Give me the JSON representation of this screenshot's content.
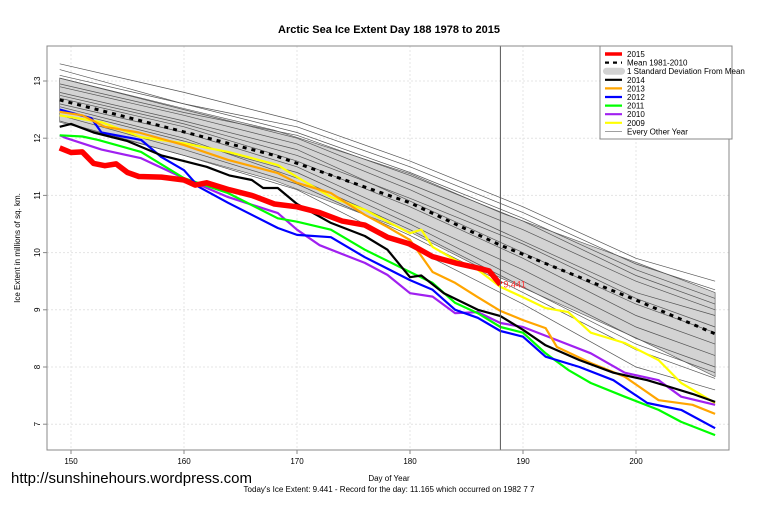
{
  "chart_data": {
    "type": "line",
    "title": "Arctic Sea Ice Extent Day 188 1978 to 2015",
    "xlabel": "Day of Year",
    "ylabel": "Ice Extent in millions of sq. km.",
    "subtitle": "Today's Ice Extent: 9.441  - Record for the day: 11.165 which occurred on 1982 7 7",
    "watermark": "http://sunshinehours.wordpress.com",
    "xlim": [
      148,
      208
    ],
    "ylim": [
      6.6,
      13.6
    ],
    "xticks": [
      150,
      160,
      170,
      180,
      190,
      200
    ],
    "yticks": [
      7,
      8,
      9,
      10,
      11,
      12,
      13
    ],
    "grid": true,
    "current_day": 188,
    "current_value_label": "9.441",
    "legend_position": "top-right",
    "legend": [
      {
        "label": "2015",
        "color": "#ff0000",
        "style": "thick"
      },
      {
        "label": "Mean 1981-2010",
        "color": "#000000",
        "style": "dashed"
      },
      {
        "label": "1 Standard Deviation From Mean",
        "color": "#d3d3d3",
        "style": "band"
      },
      {
        "label": "2014",
        "color": "#000000",
        "style": "line"
      },
      {
        "label": "2013",
        "color": "#ffa500",
        "style": "line"
      },
      {
        "label": "2012",
        "color": "#0000ff",
        "style": "line"
      },
      {
        "label": "2011",
        "color": "#00ff00",
        "style": "line"
      },
      {
        "label": "2010",
        "color": "#a020f0",
        "style": "line"
      },
      {
        "label": "2009",
        "color": "#ffff00",
        "style": "line"
      },
      {
        "label": "Every Other Year",
        "color": "#808080",
        "style": "thin"
      }
    ],
    "std_band": {
      "x": [
        149,
        160,
        168,
        180,
        188,
        200,
        207
      ],
      "upper": [
        13.05,
        12.52,
        12.14,
        11.38,
        10.7,
        9.83,
        9.3
      ],
      "lower": [
        12.28,
        11.7,
        11.26,
        10.36,
        9.56,
        8.51,
        7.83
      ]
    },
    "mean": {
      "x": [
        149,
        160,
        168,
        180,
        188,
        200,
        207
      ],
      "y": [
        12.67,
        12.11,
        11.7,
        10.87,
        10.13,
        9.17,
        8.58
      ]
    },
    "other_years": {
      "x": [
        149,
        160,
        170,
        180,
        190,
        200,
        207
      ],
      "lines": [
        [
          13.3,
          12.8,
          12.3,
          11.6,
          10.8,
          9.9,
          9.5
        ],
        [
          13.2,
          12.6,
          12.1,
          11.4,
          10.6,
          9.7,
          9.2
        ],
        [
          13.05,
          12.5,
          12.0,
          11.2,
          10.4,
          9.5,
          9.0
        ],
        [
          12.9,
          12.4,
          11.9,
          11.1,
          10.2,
          9.3,
          8.9
        ],
        [
          12.8,
          12.3,
          11.8,
          10.9,
          10.0,
          9.1,
          8.6
        ],
        [
          12.7,
          12.2,
          11.6,
          10.8,
          9.9,
          8.9,
          8.4
        ],
        [
          12.6,
          12.1,
          11.5,
          10.6,
          9.7,
          8.7,
          8.2
        ],
        [
          12.5,
          11.95,
          11.4,
          10.5,
          9.5,
          8.5,
          8.0
        ],
        [
          12.4,
          11.8,
          11.2,
          10.3,
          9.3,
          8.3,
          7.8
        ],
        [
          12.95,
          12.45,
          12.05,
          11.35,
          10.55,
          9.6,
          9.1
        ],
        [
          12.75,
          12.25,
          11.7,
          10.95,
          10.15,
          9.2,
          8.7
        ],
        [
          12.3,
          11.7,
          11.1,
          10.1,
          9.1,
          8.0,
          7.6
        ],
        [
          13.1,
          12.6,
          12.2,
          11.5,
          10.7,
          9.8,
          9.35
        ],
        [
          12.55,
          12.0,
          11.3,
          10.4,
          9.4,
          8.4,
          7.9
        ]
      ]
    },
    "series": [
      {
        "name": "2009",
        "color": "#ffff00",
        "x": [
          149,
          152.7,
          156.2,
          160,
          163.9,
          168.3,
          170,
          173,
          176,
          178,
          180,
          181,
          182,
          184,
          186,
          188,
          190,
          192,
          194,
          196,
          199,
          202,
          204,
          207
        ],
        "y": [
          12.4,
          12.28,
          12.02,
          11.91,
          11.76,
          11.53,
          11.32,
          10.97,
          10.75,
          10.54,
          10.34,
          10.4,
          10.1,
          9.87,
          9.7,
          9.4,
          9.22,
          9.03,
          8.96,
          8.6,
          8.42,
          8.12,
          7.72,
          7.37
        ]
      },
      {
        "name": "2010",
        "color": "#a020f0",
        "x": [
          149,
          149.6,
          152.7,
          156.2,
          160,
          163.9,
          168.3,
          170,
          172,
          176,
          178,
          180,
          182,
          184,
          186,
          188,
          190,
          193,
          196,
          199,
          202,
          204,
          207
        ],
        "y": [
          12.05,
          12.0,
          11.8,
          11.65,
          11.3,
          10.97,
          10.69,
          10.4,
          10.13,
          9.82,
          9.61,
          9.29,
          9.23,
          8.94,
          8.96,
          8.77,
          8.7,
          8.47,
          8.24,
          7.9,
          7.77,
          7.48,
          7.34
        ]
      },
      {
        "name": "2011",
        "color": "#00ff00",
        "x": [
          149,
          151,
          152.4,
          156.2,
          160,
          163.9,
          168.3,
          170,
          173,
          176,
          180,
          182,
          184,
          186,
          188,
          190,
          192,
          194,
          196,
          199,
          202,
          204,
          207
        ],
        "y": [
          12.05,
          12.03,
          11.97,
          11.76,
          11.3,
          11.04,
          10.6,
          10.54,
          10.4,
          10.05,
          9.66,
          9.47,
          9.12,
          8.94,
          8.7,
          8.6,
          8.24,
          7.95,
          7.72,
          7.48,
          7.25,
          7.04,
          6.81
        ]
      },
      {
        "name": "2012",
        "color": "#0000ff",
        "x": [
          149,
          151.8,
          152.7,
          156.2,
          158,
          160,
          161.3,
          163.9,
          168.3,
          170,
          173,
          176,
          180,
          182,
          184,
          186,
          188,
          190,
          192,
          195,
          198,
          201,
          204,
          207
        ],
        "y": [
          12.5,
          12.35,
          12.1,
          11.97,
          11.67,
          11.44,
          11.15,
          10.87,
          10.43,
          10.31,
          10.27,
          9.92,
          9.52,
          9.35,
          9.0,
          8.86,
          8.63,
          8.53,
          8.18,
          8.0,
          7.77,
          7.37,
          7.25,
          6.93
        ]
      },
      {
        "name": "2013",
        "color": "#ffa500",
        "x": [
          149,
          151,
          153,
          156,
          160,
          163.9,
          168.3,
          170,
          173,
          176,
          178,
          180,
          182,
          184,
          186,
          188,
          190,
          192,
          193,
          196,
          199,
          202,
          205,
          207
        ],
        "y": [
          12.46,
          12.4,
          12.2,
          12.1,
          11.88,
          11.62,
          11.39,
          11.22,
          11.04,
          10.66,
          10.45,
          10.22,
          9.66,
          9.47,
          9.22,
          8.98,
          8.82,
          8.68,
          8.35,
          8.07,
          7.83,
          7.42,
          7.34,
          7.18
        ]
      },
      {
        "name": "2014",
        "color": "#000000",
        "x": [
          149,
          150,
          152,
          155,
          158,
          160,
          162,
          164,
          166,
          167,
          168.3,
          170,
          173,
          176,
          178,
          180,
          181,
          183,
          186,
          188,
          190,
          192,
          195,
          198,
          201,
          203,
          205,
          207
        ],
        "y": [
          12.2,
          12.25,
          12.1,
          11.95,
          11.7,
          11.6,
          11.5,
          11.35,
          11.27,
          11.13,
          11.13,
          10.85,
          10.52,
          10.29,
          10.05,
          9.57,
          9.6,
          9.29,
          9.0,
          8.89,
          8.65,
          8.38,
          8.12,
          7.9,
          7.77,
          7.65,
          7.53,
          7.39
        ]
      },
      {
        "name": "2015",
        "color": "#ff0000",
        "x": [
          149,
          150,
          151,
          152,
          153,
          154,
          155,
          156,
          158,
          160,
          161,
          162,
          164,
          166,
          168,
          170,
          172,
          174,
          176,
          178,
          180,
          182,
          184,
          186,
          187,
          188
        ],
        "y": [
          11.83,
          11.75,
          11.76,
          11.56,
          11.52,
          11.55,
          11.4,
          11.33,
          11.32,
          11.27,
          11.18,
          11.22,
          11.1,
          11.0,
          10.85,
          10.8,
          10.7,
          10.55,
          10.48,
          10.27,
          10.15,
          9.93,
          9.82,
          9.73,
          9.68,
          9.441
        ]
      }
    ]
  }
}
